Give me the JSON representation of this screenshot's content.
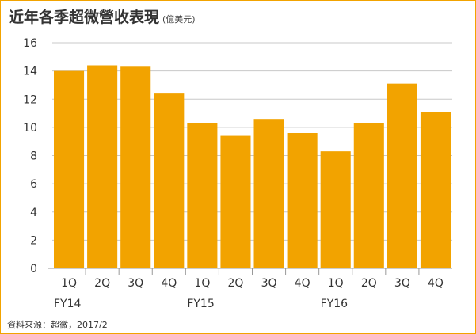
{
  "header": {
    "title": "近年各季超微營收表現",
    "unit": "(億美元)"
  },
  "footer": {
    "source": "資料來源：超微，2017/2"
  },
  "colors": {
    "bar": "#f2a300",
    "frame": "#f2a300",
    "grid": "#c8c8c8",
    "text": "#333333"
  },
  "chart_data": {
    "type": "bar",
    "title": "近年各季超微營收表現",
    "ylabel": "(億美元)",
    "categories": [
      "1Q",
      "2Q",
      "3Q",
      "4Q",
      "1Q",
      "2Q",
      "3Q",
      "4Q",
      "1Q",
      "2Q",
      "3Q",
      "4Q"
    ],
    "groups": [
      {
        "label": "FY14",
        "start": 0,
        "count": 4
      },
      {
        "label": "FY15",
        "start": 4,
        "count": 4
      },
      {
        "label": "FY16",
        "start": 8,
        "count": 4
      }
    ],
    "values": [
      14.0,
      14.4,
      14.3,
      12.4,
      10.3,
      9.4,
      10.6,
      9.6,
      8.3,
      10.3,
      13.1,
      11.1
    ],
    "ylim": [
      0,
      16
    ],
    "yticks": [
      0,
      2,
      4,
      6,
      8,
      10,
      12,
      14,
      16
    ],
    "grid": true,
    "legend": "none"
  }
}
